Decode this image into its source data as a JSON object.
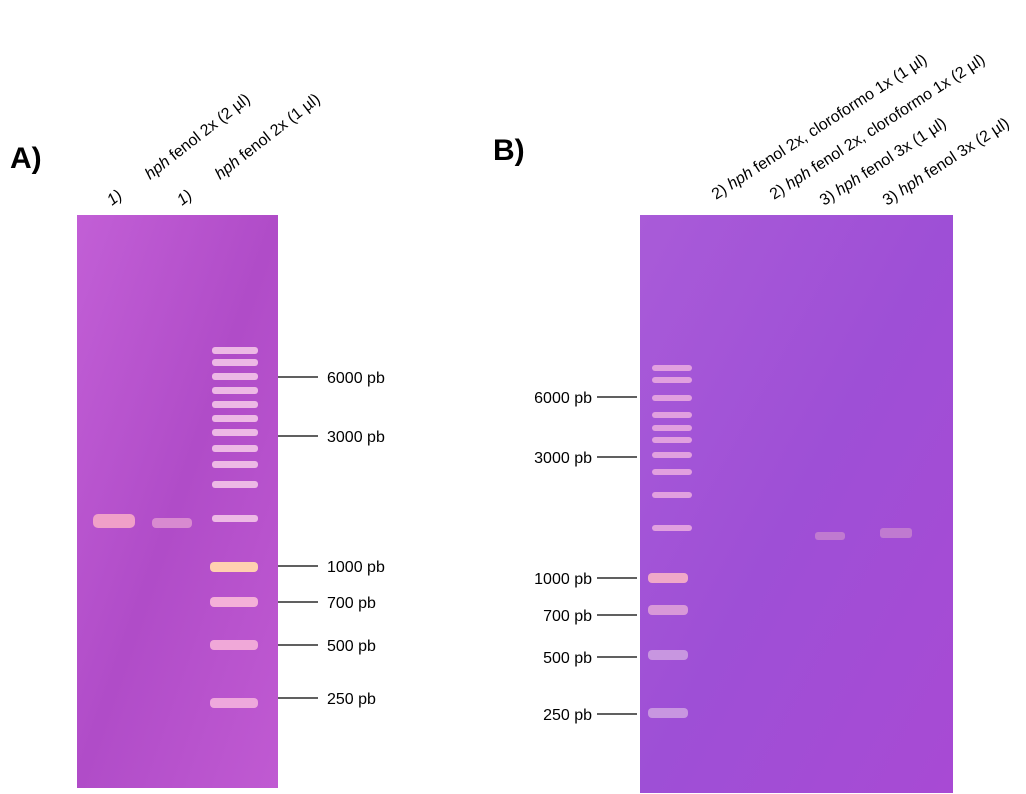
{
  "panel_a": {
    "label": "A)",
    "lanes": [
      {
        "prefix": "1)",
        "italic": "hph",
        "text": " fenol 2x (2 µl)"
      },
      {
        "prefix": "1)",
        "italic": "hph",
        "text": " fenol 2x (1 µl)"
      }
    ],
    "markers": [
      "6000 pb",
      "3000 pb",
      "1000 pb",
      "700 pb",
      "500 pb",
      "250 pb"
    ]
  },
  "panel_b": {
    "label": "B)",
    "lanes": [
      {
        "prefix": "2) ",
        "italic": "hph",
        "text": " fenol 2x, cloroformo 1x (1 µl)"
      },
      {
        "prefix": "2) ",
        "italic": "hph",
        "text": " fenol 2x, cloroformo 1x (2 µl)"
      },
      {
        "prefix": "3) ",
        "italic": "hph",
        "text": " fenol 3x (1 µl)"
      },
      {
        "prefix": "3) ",
        "italic": "hph",
        "text": " fenol 3x (2 µl)"
      }
    ],
    "markers": [
      "6000 pb",
      "3000 pb",
      "1000 pb",
      "700 pb",
      "500 pb",
      "250 pb"
    ]
  }
}
